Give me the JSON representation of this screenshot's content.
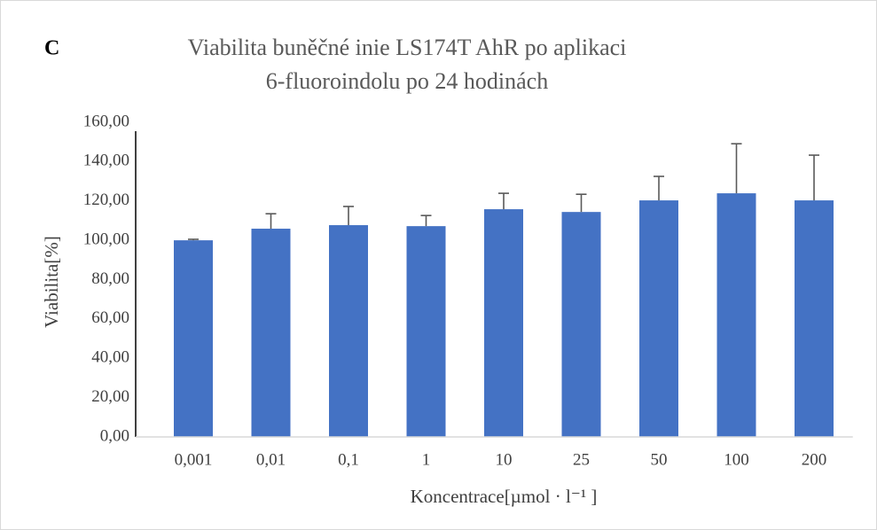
{
  "chart_data": {
    "type": "bar",
    "panel_label": "C",
    "title": [
      "Viabilita buněčné inie LS174T AhR po aplikaci",
      "6-fluoroindolu po 24 hodinách"
    ],
    "y_label": "Viabilita[%]",
    "x_label": "Koncentrace[µmol · l⁻¹ ]",
    "categories": [
      "0,001",
      "0,01",
      "0,1",
      "1",
      "10",
      "25",
      "50",
      "100",
      "200"
    ],
    "values": [
      100,
      105.9,
      107.7,
      107.2,
      115.8,
      114.4,
      120.3,
      123.9,
      120.3
    ],
    "errors": [
      0.5,
      7.6,
      9.5,
      5.4,
      8.1,
      9,
      12.2,
      25.2,
      23
    ],
    "color": "#4472c4",
    "error_color": "#595959",
    "ylim": [
      0,
      160
    ],
    "yticks": [
      {
        "value": 0,
        "label": "0,00"
      },
      {
        "value": 20,
        "label": "20,00"
      },
      {
        "value": 40,
        "label": "40,00"
      },
      {
        "value": 60,
        "label": "60,00"
      },
      {
        "value": 80,
        "label": "80,00"
      },
      {
        "value": 100,
        "label": "100,00"
      },
      {
        "value": 120,
        "label": "120,00"
      },
      {
        "value": 140,
        "label": "140,00"
      },
      {
        "value": 160,
        "label": "160,00"
      }
    ],
    "grid": false
  }
}
